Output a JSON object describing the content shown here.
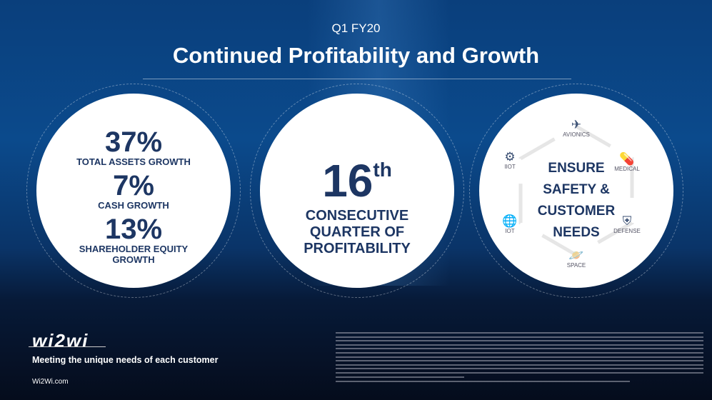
{
  "header": {
    "subtitle": "Q1 FY20",
    "title": "Continued Profitability and Growth"
  },
  "left": {
    "stats": [
      {
        "value": "37%",
        "label": "TOTAL ASSETS GROWTH"
      },
      {
        "value": "7%",
        "label": "CASH GROWTH"
      },
      {
        "value": "13%",
        "label": "SHAREHOLDER EQUITY GROWTH"
      }
    ]
  },
  "middle": {
    "number": "16",
    "suffix": "th",
    "text": "CONSECUTIVE QUARTER OF PROFITABILITY"
  },
  "right": {
    "text": "ENSURE SAFETY & CUSTOMER NEEDS",
    "nodes": [
      {
        "label": "AVIONICS",
        "icon": "airplane-icon"
      },
      {
        "label": "MEDICAL",
        "icon": "pill-icon"
      },
      {
        "label": "DEFENSE",
        "icon": "shield-icon"
      },
      {
        "label": "SPACE",
        "icon": "planet-icon"
      },
      {
        "label": "IOT",
        "icon": "globe-icon"
      },
      {
        "label": "IIOT",
        "icon": "robot-arm-icon"
      }
    ]
  },
  "footer": {
    "logo": "wi2wi",
    "tagline": "Meeting the unique needs of each customer",
    "website": "Wi2Wi.com"
  },
  "colors": {
    "navy": "#1d3663",
    "background": "#0a3f7c"
  }
}
